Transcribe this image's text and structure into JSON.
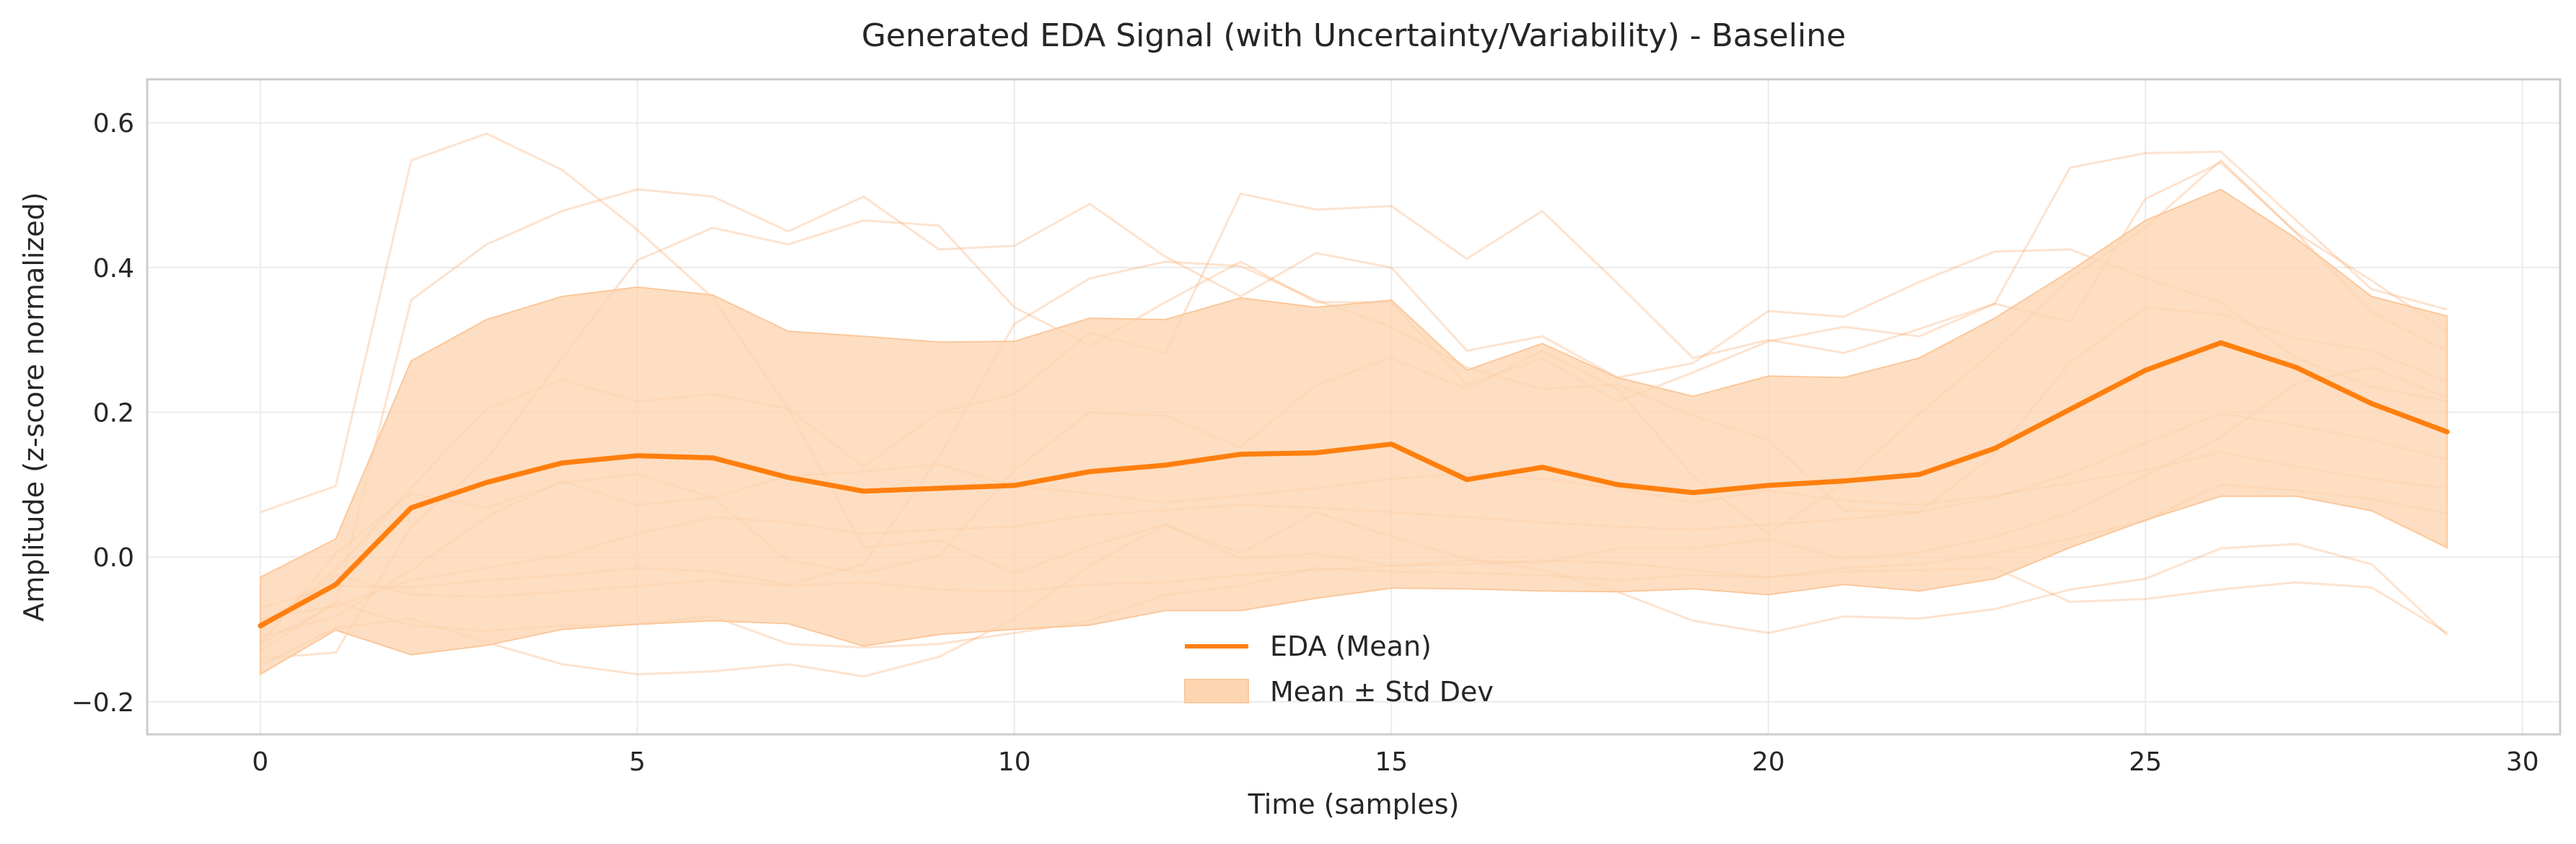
{
  "chart_data": {
    "type": "line",
    "title": "Generated EDA Signal (with Uncertainty/Variability) - Baseline",
    "xlabel": "Time (samples)",
    "ylabel": "Amplitude (z-score normalized)",
    "xlim": [
      -1.5,
      30.5
    ],
    "ylim": [
      -0.245,
      0.66
    ],
    "x_ticks": [
      0,
      5,
      10,
      15,
      20,
      25,
      30
    ],
    "y_ticks": [
      -0.2,
      0.0,
      0.2,
      0.4,
      0.6
    ],
    "y_tick_labels": [
      "−0.2",
      "0.0",
      "0.2",
      "0.4",
      "0.6"
    ],
    "grid": true,
    "legend_position": "bottom-center",
    "colors": {
      "mean": "#ff7f0e",
      "band": "#fdd5b1",
      "samples": "#f8a76a"
    },
    "x": [
      0,
      1,
      2,
      3,
      4,
      5,
      6,
      7,
      8,
      9,
      10,
      11,
      12,
      13,
      14,
      15,
      16,
      17,
      18,
      19,
      20,
      21,
      22,
      23,
      24,
      25,
      26,
      27,
      28,
      29
    ],
    "series": [
      {
        "name": "EDA (Mean)",
        "values": [
          -0.095,
          -0.038,
          0.068,
          0.103,
          0.13,
          0.14,
          0.137,
          0.11,
          0.091,
          0.095,
          0.099,
          0.118,
          0.127,
          0.142,
          0.144,
          0.156,
          0.107,
          0.124,
          0.1,
          0.089,
          0.099,
          0.105,
          0.114,
          0.15,
          0.204,
          0.258,
          0.296,
          0.262,
          0.212,
          0.173
        ]
      }
    ],
    "band": {
      "name": "Mean ± Std Dev",
      "upper": [
        -0.028,
        0.025,
        0.271,
        0.328,
        0.36,
        0.373,
        0.362,
        0.312,
        0.305,
        0.297,
        0.298,
        0.33,
        0.328,
        0.358,
        0.345,
        0.355,
        0.258,
        0.295,
        0.248,
        0.222,
        0.25,
        0.248,
        0.275,
        0.33,
        0.395,
        0.465,
        0.508,
        0.44,
        0.36,
        0.333
      ],
      "lower": [
        -0.162,
        -0.101,
        -0.135,
        -0.122,
        -0.1,
        -0.093,
        -0.088,
        -0.092,
        -0.123,
        -0.107,
        -0.1,
        -0.094,
        -0.074,
        -0.074,
        -0.057,
        -0.043,
        -0.044,
        -0.047,
        -0.048,
        -0.044,
        -0.052,
        -0.038,
        -0.047,
        -0.03,
        0.013,
        0.051,
        0.084,
        0.084,
        0.064,
        0.013
      ]
    },
    "sample_traces": [
      [
        0.062,
        0.098,
        0.548,
        0.585,
        0.535,
        0.452,
        0.358,
        0.205,
        0.013,
        0.023,
        -0.022,
        0.015,
        0.045,
        -0.002,
        0.005,
        -0.012,
        -0.005,
        -0.008,
        0.012,
        0.012,
        0.025,
        -0.002,
        0.006,
        0.028,
        0.062,
        0.112,
        0.166,
        0.24,
        0.262,
        0.22
      ],
      [
        -0.12,
        -0.065,
        0.355,
        0.432,
        0.478,
        0.508,
        0.498,
        0.45,
        0.498,
        0.425,
        0.43,
        0.488,
        0.415,
        0.36,
        0.42,
        0.4,
        0.285,
        0.305,
        0.248,
        0.268,
        0.34,
        0.332,
        0.38,
        0.422,
        0.425,
        0.385,
        0.352,
        0.275,
        0.235,
        0.215
      ],
      [
        -0.1,
        -0.018,
        0.096,
        0.205,
        0.245,
        0.215,
        0.225,
        0.205,
        0.125,
        0.2,
        0.225,
        0.31,
        0.282,
        0.502,
        0.48,
        0.485,
        0.412,
        0.478,
        0.378,
        0.275,
        0.3,
        0.282,
        0.315,
        0.35,
        0.538,
        0.558,
        0.56,
        0.465,
        0.37,
        0.342
      ],
      [
        -0.14,
        -0.132,
        0.042,
        0.135,
        0.275,
        0.41,
        0.455,
        0.432,
        0.465,
        0.458,
        0.345,
        0.292,
        0.352,
        0.408,
        0.352,
        0.352,
        0.238,
        0.275,
        0.215,
        0.255,
        0.298,
        0.318,
        0.305,
        0.35,
        0.325,
        0.495,
        0.545,
        0.448,
        0.382,
        0.312
      ],
      [
        -0.12,
        0.005,
        0.088,
        0.068,
        0.102,
        0.115,
        0.082,
        -0.005,
        -0.022,
        0.002,
        0.12,
        0.2,
        0.195,
        0.152,
        0.238,
        0.275,
        0.232,
        0.285,
        0.232,
        0.112,
        0.032,
        0.102,
        0.198,
        0.285,
        0.385,
        0.455,
        0.548,
        0.448,
        0.338,
        0.285
      ],
      [
        -0.07,
        -0.04,
        -0.042,
        -0.032,
        -0.025,
        -0.015,
        -0.02,
        -0.038,
        -0.01,
        0.138,
        0.322,
        0.385,
        0.408,
        0.402,
        0.355,
        0.318,
        0.262,
        0.232,
        0.238,
        0.195,
        0.162,
        0.065,
        0.062,
        0.142,
        0.268,
        0.345,
        0.335,
        0.302,
        0.285,
        0.242
      ],
      [
        -0.15,
        -0.098,
        -0.085,
        -0.118,
        -0.148,
        -0.162,
        -0.158,
        -0.148,
        -0.165,
        -0.138,
        -0.085,
        -0.012,
        0.045,
        0.005,
        0.062,
        0.028,
        -0.002,
        -0.018,
        -0.048,
        -0.088,
        -0.105,
        -0.082,
        -0.085,
        -0.072,
        -0.045,
        -0.03,
        0.012,
        0.018,
        -0.01,
        -0.108
      ],
      [
        -0.13,
        -0.062,
        -0.095,
        -0.102,
        -0.095,
        -0.092,
        -0.082,
        -0.12,
        -0.125,
        -0.12,
        -0.105,
        -0.088,
        -0.052,
        -0.04,
        -0.015,
        -0.02,
        -0.022,
        -0.025,
        -0.032,
        -0.025,
        -0.028,
        -0.02,
        -0.018,
        -0.015,
        -0.062,
        -0.058,
        -0.045,
        -0.035,
        -0.042,
        -0.105
      ],
      [
        -0.098,
        -0.025,
        -0.052,
        -0.055,
        -0.048,
        -0.04,
        -0.032,
        -0.04,
        -0.035,
        -0.045,
        -0.048,
        -0.038,
        -0.035,
        -0.025,
        -0.018,
        -0.012,
        -0.01,
        -0.005,
        -0.008,
        -0.018,
        -0.028,
        -0.015,
        -0.01,
        0.005,
        0.025,
        0.05,
        0.1,
        0.092,
        0.08,
        0.06
      ],
      [
        -0.11,
        -0.082,
        -0.018,
        0.055,
        0.105,
        0.072,
        0.082,
        0.112,
        0.118,
        0.128,
        0.098,
        0.088,
        0.075,
        0.085,
        0.095,
        0.108,
        0.115,
        0.108,
        0.095,
        0.075,
        0.092,
        0.078,
        0.072,
        0.085,
        0.102,
        0.12,
        0.145,
        0.125,
        0.108,
        0.095
      ],
      [
        -0.085,
        -0.068,
        -0.032,
        -0.015,
        0.002,
        0.032,
        0.055,
        0.048,
        0.032,
        0.038,
        0.042,
        0.058,
        0.065,
        0.072,
        0.068,
        0.062,
        0.055,
        0.048,
        0.042,
        0.038,
        0.045,
        0.052,
        0.062,
        0.082,
        0.115,
        0.158,
        0.198,
        0.182,
        0.162,
        0.135
      ]
    ]
  }
}
